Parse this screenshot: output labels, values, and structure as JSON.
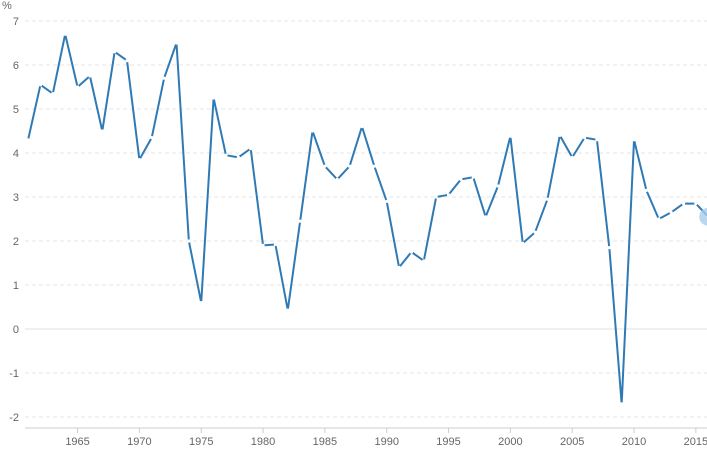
{
  "chart_data": {
    "type": "line",
    "ylabel": "%",
    "ylim": [
      -2,
      7
    ],
    "yticks": [
      -2,
      -1,
      0,
      1,
      2,
      3,
      4,
      5,
      6,
      7
    ],
    "xlim": [
      1960.75,
      2015.9
    ],
    "xticks": [
      1965,
      1970,
      1975,
      1980,
      1985,
      1990,
      1995,
      2000,
      2005,
      2010,
      2015
    ],
    "grid": "horizontal dashed",
    "colors": {
      "line": "#2f7ab5",
      "marker": "#ffffff",
      "grid": "#e5e5e5",
      "zero_line": "#e0e0e0",
      "axis": "#cccccc",
      "highlight": "#a9cdea"
    },
    "series": [
      {
        "x": [
          1961,
          1962,
          1963,
          1964,
          1965,
          1966,
          1967,
          1968,
          1969,
          1970,
          1971,
          1972,
          1973,
          1974,
          1975,
          1976,
          1977,
          1978,
          1979,
          1980,
          1981,
          1982,
          1983,
          1984,
          1985,
          1986,
          1987,
          1988,
          1989,
          1990,
          1991,
          1992,
          1993,
          1994,
          1995,
          1996,
          1997,
          1998,
          1999,
          2000,
          2001,
          2002,
          2003,
          2004,
          2005,
          2006,
          2007,
          2008,
          2009,
          2010,
          2011,
          2012,
          2013,
          2014,
          2015,
          2016
        ],
        "y": [
          4.3,
          5.55,
          5.35,
          6.7,
          5.5,
          5.75,
          4.5,
          6.3,
          6.1,
          3.85,
          4.35,
          5.7,
          6.5,
          2.0,
          0.6,
          5.25,
          3.95,
          3.9,
          4.1,
          1.9,
          1.92,
          0.43,
          2.45,
          4.5,
          3.7,
          3.4,
          3.7,
          4.6,
          3.7,
          2.9,
          1.4,
          1.75,
          1.55,
          3.0,
          3.05,
          3.4,
          3.45,
          2.55,
          3.25,
          4.38,
          1.95,
          2.2,
          2.95,
          4.4,
          3.9,
          4.35,
          4.3,
          1.85,
          -1.7,
          4.3,
          3.15,
          2.5,
          2.65,
          2.85,
          2.85,
          2.55
        ]
      }
    ]
  }
}
